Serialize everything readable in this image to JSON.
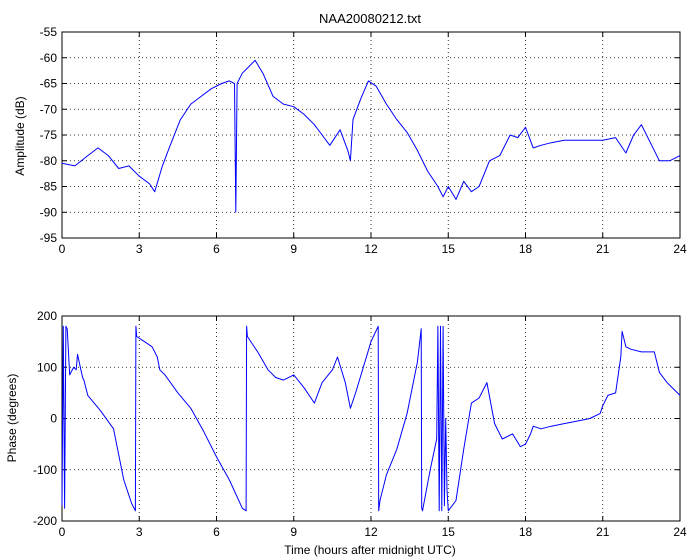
{
  "chart_data": [
    {
      "type": "line",
      "title": "NAA20080212.txt",
      "xlabel": "",
      "ylabel": "Amplitude (dB)",
      "xlim": [
        0,
        24
      ],
      "ylim": [
        -95,
        -55
      ],
      "xticks": [
        0,
        3,
        6,
        9,
        12,
        15,
        18,
        21,
        24
      ],
      "yticks": [
        -95,
        -90,
        -85,
        -80,
        -75,
        -70,
        -65,
        -60,
        -55
      ],
      "grid": true,
      "color": "#0000ff",
      "series": [
        {
          "x": [
            0,
            0.5,
            1.0,
            1.4,
            1.8,
            2.2,
            2.6,
            3.0,
            3.4,
            3.6,
            3.9,
            4.2,
            4.6,
            5.0,
            5.4,
            5.8,
            6.2,
            6.5,
            6.7,
            6.75,
            6.8,
            7.0,
            7.2,
            7.5,
            7.8,
            8.2,
            8.6,
            9.0,
            9.4,
            9.8,
            10.1,
            10.4,
            10.8,
            11.1,
            11.2,
            11.3,
            11.6,
            11.9,
            12.2,
            12.6,
            13.0,
            13.4,
            13.8,
            14.2,
            14.6,
            14.8,
            15.0,
            15.3,
            15.6,
            15.9,
            16.2,
            16.6,
            17.0,
            17.4,
            17.7,
            18.0,
            18.3,
            18.6,
            19.0,
            19.5,
            20.0,
            20.5,
            21.0,
            21.5,
            21.9,
            22.2,
            22.5,
            22.9,
            23.2,
            23.6,
            24.0
          ],
          "y": [
            -80.5,
            -81,
            -79,
            -77.5,
            -79,
            -81.5,
            -81,
            -83,
            -84.5,
            -86,
            -81,
            -77,
            -72,
            -69,
            -67.5,
            -66,
            -65,
            -64.5,
            -65,
            -90,
            -65,
            -63,
            -62,
            -60.5,
            -63,
            -67.5,
            -69,
            -69.5,
            -71,
            -73,
            -75,
            -77,
            -74,
            -78,
            -80,
            -72,
            -68,
            -64.5,
            -65.5,
            -69,
            -72,
            -74.5,
            -78,
            -82,
            -85,
            -87,
            -85,
            -87.5,
            -84,
            -86,
            -85,
            -80,
            -79,
            -75,
            -75.5,
            -73.5,
            -77.5,
            -77,
            -76.5,
            -76,
            -76,
            -76,
            -76,
            -75.5,
            -78.5,
            -75,
            -73,
            -77,
            -80,
            -80,
            -79
          ]
        }
      ]
    },
    {
      "type": "line",
      "title": "",
      "xlabel": "Time (hours after midnight UTC)",
      "ylabel": "Phase (degrees)",
      "xlim": [
        0,
        24
      ],
      "ylim": [
        -200,
        200
      ],
      "xticks": [
        0,
        3,
        6,
        9,
        12,
        15,
        18,
        21,
        24
      ],
      "yticks": [
        -200,
        -100,
        0,
        100,
        200
      ],
      "grid": true,
      "color": "#0000ff",
      "series": [
        {
          "x": [
            0,
            0.05,
            0.1,
            0.15,
            0.2,
            0.3,
            0.45,
            0.55,
            0.6,
            0.8,
            0.85,
            1.0,
            1.5,
            2.0,
            2.4,
            2.7,
            2.85,
            2.87,
            2.9,
            3.2,
            3.5,
            3.7,
            3.8,
            4.0,
            4.5,
            5.0,
            5.5,
            6.0,
            6.5,
            7.0,
            7.15,
            7.17,
            7.2,
            7.6,
            8.0,
            8.3,
            8.6,
            9.0,
            9.4,
            9.8,
            10.1,
            10.5,
            10.7,
            11.0,
            11.2,
            11.4,
            11.7,
            12.0,
            12.28,
            12.3,
            12.35,
            12.6,
            13.0,
            13.4,
            13.8,
            13.95,
            13.97,
            14.0,
            14.3,
            14.55,
            14.6,
            14.65,
            14.7,
            14.75,
            14.8,
            14.85,
            14.9,
            14.95,
            15.0,
            15.3,
            15.6,
            15.9,
            16.2,
            16.5,
            16.8,
            17.1,
            17.5,
            17.8,
            18.0,
            18.2,
            18.3,
            18.6,
            19.0,
            19.5,
            20.0,
            20.5,
            20.9,
            21.0,
            21.2,
            21.5,
            21.7,
            21.75,
            21.9,
            22.1,
            22.5,
            23.0,
            23.2,
            23.5,
            24.0
          ],
          "y": [
            -170,
            180,
            -175,
            180,
            175,
            85,
            100,
            95,
            125,
            80,
            75,
            45,
            15,
            -20,
            -120,
            -165,
            -180,
            180,
            160,
            150,
            140,
            120,
            95,
            85,
            50,
            20,
            -25,
            -75,
            -120,
            -175,
            -180,
            180,
            160,
            130,
            95,
            80,
            75,
            85,
            60,
            30,
            70,
            95,
            120,
            70,
            20,
            50,
            100,
            150,
            180,
            -180,
            -160,
            -110,
            -60,
            10,
            110,
            175,
            -175,
            -180,
            -100,
            -40,
            180,
            -180,
            180,
            -180,
            180,
            -170,
            0,
            -140,
            -180,
            -160,
            -60,
            30,
            40,
            70,
            -10,
            -40,
            -30,
            -55,
            -50,
            -30,
            -15,
            -20,
            -15,
            -10,
            -5,
            0,
            10,
            25,
            45,
            50,
            120,
            170,
            140,
            135,
            130,
            130,
            90,
            70,
            45
          ]
        }
      ]
    }
  ]
}
